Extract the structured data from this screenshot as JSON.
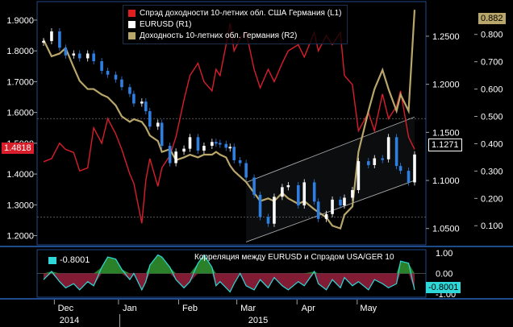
{
  "legend": [
    {
      "label": "Спрэд доходности 10-летних обл. США Германия (L1)",
      "color": "#e02020"
    },
    {
      "label": "EURUSD (R1)",
      "color": "#ffffff"
    },
    {
      "label": "Доходность 10-летних обл. Германия (R2)",
      "color": "#b9a66a"
    }
  ],
  "badges": {
    "spread_last": "1.4818",
    "eurusd_last": "1.1271",
    "yield_last": "0.882",
    "corr_legend": "-0.8001",
    "corr_last": "-0.8001"
  },
  "axes": {
    "left_ticks": [
      "1.9000",
      "1.8000",
      "1.7000",
      "1.6000",
      "1.5000",
      "1.4000",
      "1.3000",
      "1.2000"
    ],
    "right1_ticks": [
      "1.2500",
      "1.2000",
      "1.1500",
      "1.1000",
      "1.0500"
    ],
    "right2_ticks": [
      "0.800",
      "0.700",
      "0.600",
      "0.500",
      "0.400",
      "0.300",
      "0.200",
      "0.100"
    ],
    "corr_ticks": [
      "1.00",
      "0.00",
      "-1.00"
    ],
    "months": [
      "Dec",
      "Jan",
      "Feb",
      "Mar",
      "Apr",
      "May"
    ],
    "years": [
      "2014",
      "2015"
    ]
  },
  "corr_title": "Корреляция между EURUSD и Спрэдом USA/GER 10",
  "colors": {
    "background": "#000000",
    "panel_border": "#1f4a8c",
    "spread": "#d81e2b",
    "eurusd_up": "#ffffff",
    "eurusd_down": "#2f7fe0",
    "yield": "#b9a66a",
    "corr_line": "#2fd8d8",
    "corr_positive": "#2f8f2f",
    "corr_negative": "#8f1f3a",
    "trend_channel": "#c8c8c8"
  },
  "chart_data": {
    "type": "line",
    "x_range": [
      "2014-11-24",
      "2015-05-28"
    ],
    "series": [
      {
        "name": "Спрэд доходности 10-летних обл. США Германия (L1)",
        "axis": "L1",
        "ylim": [
          1.17,
          1.96
        ],
        "points": [
          [
            "2014-11-24",
            1.44
          ],
          [
            "2014-11-28",
            1.45
          ],
          [
            "2014-12-02",
            1.5
          ],
          [
            "2014-12-05",
            1.48
          ],
          [
            "2014-12-09",
            1.47
          ],
          [
            "2014-12-12",
            1.41
          ],
          [
            "2014-12-16",
            1.42
          ],
          [
            "2014-12-19",
            1.55
          ],
          [
            "2014-12-23",
            1.5
          ],
          [
            "2014-12-26",
            1.58
          ],
          [
            "2014-12-30",
            1.53
          ],
          [
            "2015-01-02",
            1.48
          ],
          [
            "2015-01-06",
            1.4
          ],
          [
            "2015-01-08",
            1.37
          ],
          [
            "2015-01-12",
            1.24
          ],
          [
            "2015-01-14",
            1.38
          ],
          [
            "2015-01-16",
            1.45
          ],
          [
            "2015-01-20",
            1.36
          ],
          [
            "2015-01-22",
            1.42
          ],
          [
            "2015-01-26",
            1.46
          ],
          [
            "2015-01-29",
            1.52
          ],
          [
            "2015-02-02",
            1.64
          ],
          [
            "2015-02-05",
            1.72
          ],
          [
            "2015-02-09",
            1.76
          ],
          [
            "2015-02-12",
            1.7
          ],
          [
            "2015-02-16",
            1.67
          ],
          [
            "2015-02-18",
            1.74
          ],
          [
            "2015-02-20",
            1.72
          ],
          [
            "2015-02-23",
            1.82
          ],
          [
            "2015-02-25",
            1.89
          ],
          [
            "2015-02-27",
            1.8
          ],
          [
            "2015-03-02",
            1.84
          ],
          [
            "2015-03-05",
            1.86
          ],
          [
            "2015-03-09",
            1.74
          ],
          [
            "2015-03-12",
            1.68
          ],
          [
            "2015-03-16",
            1.74
          ],
          [
            "2015-03-19",
            1.7
          ],
          [
            "2015-03-23",
            1.76
          ],
          [
            "2015-03-26",
            1.8
          ],
          [
            "2015-03-31",
            1.82
          ],
          [
            "2015-04-03",
            1.78
          ],
          [
            "2015-04-08",
            1.86
          ],
          [
            "2015-04-10",
            1.8
          ],
          [
            "2015-04-14",
            1.85
          ],
          [
            "2015-04-17",
            1.82
          ],
          [
            "2015-04-21",
            1.86
          ],
          [
            "2015-04-23",
            1.72
          ],
          [
            "2015-04-27",
            1.69
          ],
          [
            "2015-04-30",
            1.54
          ],
          [
            "2015-05-05",
            1.6
          ],
          [
            "2015-05-08",
            1.54
          ],
          [
            "2015-05-12",
            1.66
          ],
          [
            "2015-05-15",
            1.58
          ],
          [
            "2015-05-19",
            1.62
          ],
          [
            "2015-05-21",
            1.67
          ],
          [
            "2015-05-25",
            1.52
          ],
          [
            "2015-05-28",
            1.48
          ]
        ]
      },
      {
        "name": "EURUSD (R1)",
        "axis": "R1",
        "ylim": [
          1.033,
          1.286
        ],
        "points": [
          [
            "2014-11-24",
            1.245
          ],
          [
            "2014-11-28",
            1.255
          ],
          [
            "2014-12-02",
            1.238
          ],
          [
            "2014-12-05",
            1.23
          ],
          [
            "2014-12-09",
            1.232
          ],
          [
            "2014-12-12",
            1.227
          ],
          [
            "2014-12-16",
            1.232
          ],
          [
            "2014-12-19",
            1.224
          ],
          [
            "2014-12-23",
            1.214
          ],
          [
            "2014-12-26",
            1.21
          ],
          [
            "2014-12-30",
            1.205
          ],
          [
            "2015-01-02",
            1.197
          ],
          [
            "2015-01-06",
            1.19
          ],
          [
            "2015-01-08",
            1.18
          ],
          [
            "2015-01-12",
            1.182
          ],
          [
            "2015-01-14",
            1.172
          ],
          [
            "2015-01-16",
            1.156
          ],
          [
            "2015-01-20",
            1.16
          ],
          [
            "2015-01-22",
            1.136
          ],
          [
            "2015-01-26",
            1.118
          ],
          [
            "2015-01-29",
            1.13
          ],
          [
            "2015-02-02",
            1.133
          ],
          [
            "2015-02-05",
            1.145
          ],
          [
            "2015-02-09",
            1.131
          ],
          [
            "2015-02-12",
            1.136
          ],
          [
            "2015-02-16",
            1.14
          ],
          [
            "2015-02-18",
            1.139
          ],
          [
            "2015-02-20",
            1.138
          ],
          [
            "2015-02-23",
            1.134
          ],
          [
            "2015-02-25",
            1.135
          ],
          [
            "2015-02-27",
            1.121
          ],
          [
            "2015-03-02",
            1.118
          ],
          [
            "2015-03-05",
            1.103
          ],
          [
            "2015-03-09",
            1.085
          ],
          [
            "2015-03-12",
            1.062
          ],
          [
            "2015-03-16",
            1.055
          ],
          [
            "2015-03-19",
            1.083
          ],
          [
            "2015-03-23",
            1.093
          ],
          [
            "2015-03-26",
            1.095
          ],
          [
            "2015-03-31",
            1.074
          ],
          [
            "2015-04-03",
            1.098
          ],
          [
            "2015-04-08",
            1.078
          ],
          [
            "2015-04-10",
            1.06
          ],
          [
            "2015-04-14",
            1.065
          ],
          [
            "2015-04-17",
            1.08
          ],
          [
            "2015-04-21",
            1.074
          ],
          [
            "2015-04-23",
            1.082
          ],
          [
            "2015-04-27",
            1.09
          ],
          [
            "2015-04-30",
            1.12
          ],
          [
            "2015-05-05",
            1.116
          ],
          [
            "2015-05-08",
            1.123
          ],
          [
            "2015-05-12",
            1.122
          ],
          [
            "2015-05-15",
            1.145
          ],
          [
            "2015-05-19",
            1.115
          ],
          [
            "2015-05-21",
            1.11
          ],
          [
            "2015-05-25",
            1.098
          ],
          [
            "2015-05-28",
            1.127
          ]
        ]
      },
      {
        "name": "Доходность 10-летних обл. Германия (R2)",
        "axis": "R2",
        "ylim": [
          0.03,
          0.92
        ],
        "points": [
          [
            "2014-11-24",
            0.78
          ],
          [
            "2014-11-28",
            0.72
          ],
          [
            "2014-12-02",
            0.73
          ],
          [
            "2014-12-05",
            0.75
          ],
          [
            "2014-12-09",
            0.68
          ],
          [
            "2014-12-12",
            0.63
          ],
          [
            "2014-12-16",
            0.6
          ],
          [
            "2014-12-19",
            0.6
          ],
          [
            "2014-12-23",
            0.58
          ],
          [
            "2014-12-26",
            0.57
          ],
          [
            "2014-12-30",
            0.54
          ],
          [
            "2015-01-02",
            0.5
          ],
          [
            "2015-01-06",
            0.48
          ],
          [
            "2015-01-08",
            0.49
          ],
          [
            "2015-01-12",
            0.48
          ],
          [
            "2015-01-14",
            0.46
          ],
          [
            "2015-01-16",
            0.43
          ],
          [
            "2015-01-20",
            0.41
          ],
          [
            "2015-01-22",
            0.37
          ],
          [
            "2015-01-26",
            0.38
          ],
          [
            "2015-01-29",
            0.34
          ],
          [
            "2015-02-02",
            0.35
          ],
          [
            "2015-02-05",
            0.36
          ],
          [
            "2015-02-09",
            0.35
          ],
          [
            "2015-02-12",
            0.36
          ],
          [
            "2015-02-16",
            0.36
          ],
          [
            "2015-02-18",
            0.37
          ],
          [
            "2015-02-20",
            0.36
          ],
          [
            "2015-02-23",
            0.35
          ],
          [
            "2015-02-25",
            0.32
          ],
          [
            "2015-02-27",
            0.3
          ],
          [
            "2015-03-02",
            0.28
          ],
          [
            "2015-03-05",
            0.26
          ],
          [
            "2015-03-09",
            0.22
          ],
          [
            "2015-03-12",
            0.19
          ],
          [
            "2015-03-16",
            0.2
          ],
          [
            "2015-03-19",
            0.19
          ],
          [
            "2015-03-23",
            0.22
          ],
          [
            "2015-03-26",
            0.2
          ],
          [
            "2015-03-31",
            0.18
          ],
          [
            "2015-04-03",
            0.19
          ],
          [
            "2015-04-08",
            0.16
          ],
          [
            "2015-04-10",
            0.15
          ],
          [
            "2015-04-14",
            0.13
          ],
          [
            "2015-04-17",
            0.1
          ],
          [
            "2015-04-21",
            0.09
          ],
          [
            "2015-04-23",
            0.14
          ],
          [
            "2015-04-27",
            0.17
          ],
          [
            "2015-04-30",
            0.37
          ],
          [
            "2015-05-05",
            0.52
          ],
          [
            "2015-05-08",
            0.6
          ],
          [
            "2015-05-12",
            0.67
          ],
          [
            "2015-05-15",
            0.6
          ],
          [
            "2015-05-19",
            0.52
          ],
          [
            "2015-05-21",
            0.58
          ],
          [
            "2015-05-25",
            0.52
          ],
          [
            "2015-05-28",
            0.89
          ]
        ]
      }
    ],
    "correlation": {
      "title": "Корреляция между EURUSD и Спрэдом USA/GER 10",
      "ylim": [
        -1.0,
        1.0
      ],
      "last": -0.8001,
      "points": [
        [
          "2014-11-24",
          -0.3
        ],
        [
          "2014-11-28",
          0.1
        ],
        [
          "2014-12-02",
          -0.4
        ],
        [
          "2014-12-05",
          -0.7
        ],
        [
          "2014-12-09",
          -0.5
        ],
        [
          "2014-12-12",
          -0.8
        ],
        [
          "2014-12-16",
          -0.4
        ],
        [
          "2014-12-19",
          -0.6
        ],
        [
          "2014-12-23",
          0.3
        ],
        [
          "2014-12-26",
          0.8
        ],
        [
          "2014-12-30",
          0.7
        ],
        [
          "2015-01-02",
          0.2
        ],
        [
          "2015-01-06",
          -0.3
        ],
        [
          "2015-01-08",
          0.0
        ],
        [
          "2015-01-12",
          -0.8
        ],
        [
          "2015-01-14",
          -0.4
        ],
        [
          "2015-01-16",
          0.4
        ],
        [
          "2015-01-20",
          0.9
        ],
        [
          "2015-01-22",
          0.8
        ],
        [
          "2015-01-26",
          0.3
        ],
        [
          "2015-01-29",
          -0.3
        ],
        [
          "2015-02-02",
          -0.7
        ],
        [
          "2015-02-05",
          -0.4
        ],
        [
          "2015-02-09",
          0.5
        ],
        [
          "2015-02-12",
          0.9
        ],
        [
          "2015-02-16",
          0.3
        ],
        [
          "2015-02-18",
          -0.6
        ],
        [
          "2015-02-20",
          -0.4
        ],
        [
          "2015-02-23",
          -0.7
        ],
        [
          "2015-02-25",
          -0.9
        ],
        [
          "2015-02-27",
          -0.5
        ],
        [
          "2015-03-02",
          0.0
        ],
        [
          "2015-03-05",
          -0.6
        ],
        [
          "2015-03-09",
          -0.8
        ],
        [
          "2015-03-12",
          -0.3
        ],
        [
          "2015-03-16",
          -0.7
        ],
        [
          "2015-03-19",
          -0.2
        ],
        [
          "2015-03-23",
          -0.6
        ],
        [
          "2015-03-26",
          -0.8
        ],
        [
          "2015-03-31",
          -0.4
        ],
        [
          "2015-04-03",
          -0.6
        ],
        [
          "2015-04-08",
          0.1
        ],
        [
          "2015-04-10",
          -0.5
        ],
        [
          "2015-04-14",
          -0.8
        ],
        [
          "2015-04-17",
          -0.3
        ],
        [
          "2015-04-21",
          -0.7
        ],
        [
          "2015-04-23",
          -0.2
        ],
        [
          "2015-04-27",
          -0.6
        ],
        [
          "2015-04-30",
          -0.4
        ],
        [
          "2015-05-05",
          -0.8
        ],
        [
          "2015-05-08",
          -0.3
        ],
        [
          "2015-05-12",
          -0.5
        ],
        [
          "2015-05-15",
          -0.7
        ],
        [
          "2015-05-19",
          -0.5
        ],
        [
          "2015-05-21",
          0.6
        ],
        [
          "2015-05-25",
          0.5
        ],
        [
          "2015-05-28",
          -0.8
        ]
      ]
    },
    "grid": false,
    "legend_position": "top-left"
  }
}
